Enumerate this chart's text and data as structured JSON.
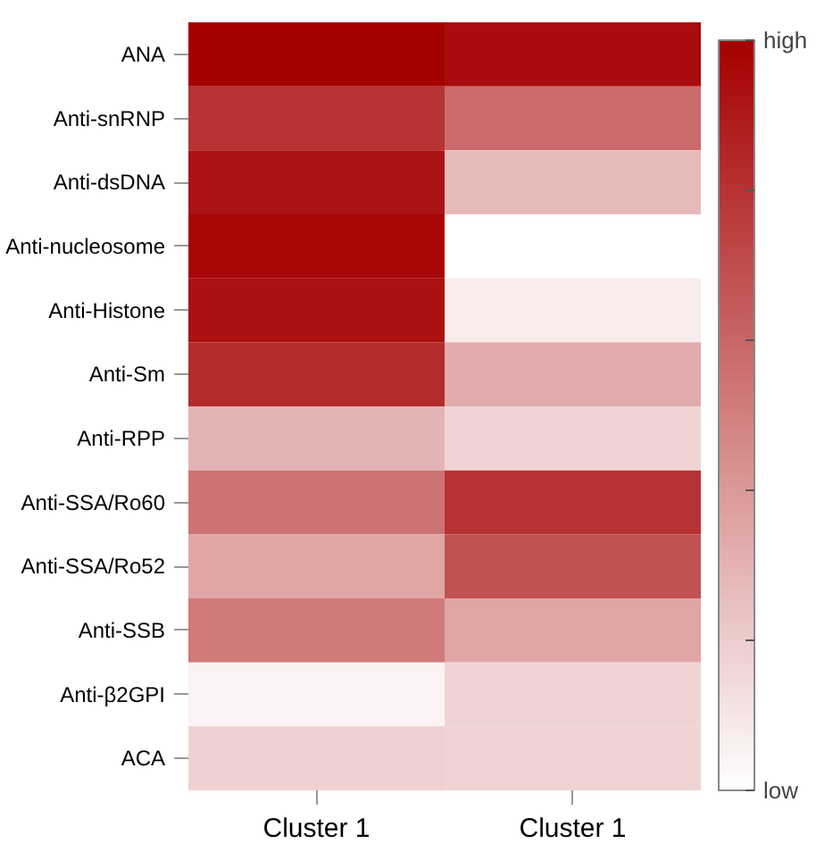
{
  "chart_data": {
    "type": "heatmap",
    "categories": [
      "Cluster 1",
      "Cluster 1"
    ],
    "y_categories": [
      "ANA",
      "Anti-snRNP",
      "Anti-dsDNA",
      "Anti-nucleosome",
      "Anti-Histone",
      "Anti-Sm",
      "Anti-RPP",
      "Anti-SSA/Ro60",
      "Anti-SSA/Ro52",
      "Anti-SSB",
      "Anti-β2GPI",
      "ACA"
    ],
    "cells": [
      [
        1.0,
        0.95
      ],
      [
        0.8,
        0.58
      ],
      [
        0.92,
        0.27
      ],
      [
        0.97,
        0.0
      ],
      [
        0.93,
        0.08
      ],
      [
        0.83,
        0.33
      ],
      [
        0.3,
        0.17
      ],
      [
        0.55,
        0.8
      ],
      [
        0.35,
        0.68
      ],
      [
        0.52,
        0.35
      ],
      [
        0.05,
        0.17
      ],
      [
        0.18,
        0.17
      ]
    ],
    "clim": [
      0,
      1
    ],
    "cticks": [
      {
        "value": 0,
        "label": "low"
      },
      {
        "value": 0.2,
        "label": null
      },
      {
        "value": 0.4,
        "label": null
      },
      {
        "value": 0.6,
        "label": null
      },
      {
        "value": 0.8,
        "label": null
      },
      {
        "value": 1,
        "label": "high"
      }
    ]
  }
}
